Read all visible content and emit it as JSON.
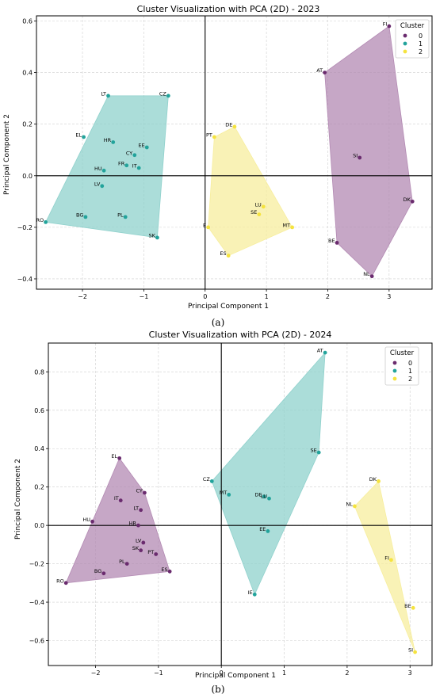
{
  "captions": [
    "(a)",
    "(b)"
  ],
  "chart_data": [
    {
      "type": "scatter",
      "title": "Cluster Visualization with PCA (2D) - 2023",
      "xlabel": "Principal Component 1",
      "ylabel": "Principal Component 2",
      "xlim": [
        -2.75,
        3.7
      ],
      "ylim": [
        -0.44,
        0.62
      ],
      "xticks": [
        -2,
        -1,
        0,
        1,
        2,
        3
      ],
      "yticks": [
        -0.4,
        -0.2,
        0.0,
        0.2,
        0.4,
        0.6
      ],
      "ytick_labels": [
        "−0.4",
        "−0.2",
        "0.0",
        "0.2",
        "0.4",
        "0.6"
      ],
      "xtick_labels": [
        "−2",
        "−1",
        "0",
        "1",
        "2",
        "3"
      ],
      "grid": true,
      "legend": {
        "title": "Cluster",
        "placement": "top-right",
        "entries": [
          "0",
          "1",
          "2"
        ]
      },
      "cluster_colors": {
        "0": "#6a2b6e",
        "1": "#22a39b",
        "2": "#f5e33f"
      },
      "hull_colors": {
        "0": "#b38ab3",
        "1": "#8fd1cc",
        "2": "#f7ee9e"
      },
      "hulls": {
        "0": [
          "FI",
          "DK",
          "NL",
          "BE",
          "AT"
        ],
        "1": [
          "LT",
          "CZ",
          "SK",
          "RO"
        ],
        "2": [
          "PT",
          "DE",
          "MT",
          "ES",
          "E"
        ]
      },
      "points": [
        {
          "label": "FI",
          "cluster": 0,
          "x": 3.0,
          "y": 0.58
        },
        {
          "label": "AT",
          "cluster": 0,
          "x": 1.95,
          "y": 0.4
        },
        {
          "label": "SI",
          "cluster": 0,
          "x": 2.52,
          "y": 0.07
        },
        {
          "label": "DK",
          "cluster": 0,
          "x": 3.38,
          "y": -0.1
        },
        {
          "label": "BE",
          "cluster": 0,
          "x": 2.15,
          "y": -0.26
        },
        {
          "label": "NL",
          "cluster": 0,
          "x": 2.72,
          "y": -0.39
        },
        {
          "label": "LT",
          "cluster": 1,
          "x": -1.58,
          "y": 0.31
        },
        {
          "label": "CZ",
          "cluster": 1,
          "x": -0.6,
          "y": 0.31
        },
        {
          "label": "EL",
          "cluster": 1,
          "x": -1.98,
          "y": 0.15
        },
        {
          "label": "HR",
          "cluster": 1,
          "x": -1.5,
          "y": 0.13
        },
        {
          "label": "EE",
          "cluster": 1,
          "x": -0.95,
          "y": 0.11
        },
        {
          "label": "CY",
          "cluster": 1,
          "x": -1.15,
          "y": 0.08
        },
        {
          "label": "FR",
          "cluster": 1,
          "x": -1.28,
          "y": 0.04
        },
        {
          "label": "IT",
          "cluster": 1,
          "x": -1.08,
          "y": 0.03
        },
        {
          "label": "HU",
          "cluster": 1,
          "x": -1.65,
          "y": 0.02
        },
        {
          "label": "LV",
          "cluster": 1,
          "x": -1.68,
          "y": -0.04
        },
        {
          "label": "RO",
          "cluster": 1,
          "x": -2.6,
          "y": -0.18
        },
        {
          "label": "BG",
          "cluster": 1,
          "x": -1.95,
          "y": -0.16
        },
        {
          "label": "PL",
          "cluster": 1,
          "x": -1.3,
          "y": -0.16
        },
        {
          "label": "SK",
          "cluster": 1,
          "x": -0.78,
          "y": -0.24
        },
        {
          "label": "DE",
          "cluster": 2,
          "x": 0.48,
          "y": 0.19
        },
        {
          "label": "PT",
          "cluster": 2,
          "x": 0.15,
          "y": 0.15
        },
        {
          "label": "LU",
          "cluster": 2,
          "x": 0.95,
          "y": -0.12
        },
        {
          "label": "SE",
          "cluster": 2,
          "x": 0.88,
          "y": -0.15
        },
        {
          "label": "MT",
          "cluster": 2,
          "x": 1.42,
          "y": -0.2
        },
        {
          "label": "E",
          "cluster": 2,
          "x": 0.05,
          "y": -0.2
        },
        {
          "label": "ES",
          "cluster": 2,
          "x": 0.38,
          "y": -0.31
        }
      ]
    },
    {
      "type": "scatter",
      "title": "Cluster Visualization with PCA (2D) - 2024",
      "xlabel": "Principal Component 1",
      "ylabel": "Principal Component 2",
      "xlim": [
        -2.75,
        3.35
      ],
      "ylim": [
        -0.73,
        0.95
      ],
      "xticks": [
        -2,
        -1,
        0,
        1,
        2,
        3
      ],
      "yticks": [
        -0.6,
        -0.4,
        -0.2,
        0.0,
        0.2,
        0.4,
        0.6,
        0.8
      ],
      "ytick_labels": [
        "−0.6",
        "−0.4",
        "−0.2",
        "0.0",
        "0.2",
        "0.4",
        "0.6",
        "0.8"
      ],
      "xtick_labels": [
        "−2",
        "−1",
        "0",
        "1",
        "2",
        "3"
      ],
      "grid": true,
      "legend": {
        "title": "Cluster",
        "placement": "top-right",
        "entries": [
          "0",
          "1",
          "2"
        ]
      },
      "cluster_colors": {
        "0": "#6a2b6e",
        "1": "#22a39b",
        "2": "#f5e33f"
      },
      "hull_colors": {
        "0": "#b38ab3",
        "1": "#8fd1cc",
        "2": "#f7ee9e"
      },
      "hulls": {
        "0": [
          "EL",
          "CY",
          "ES",
          "RO"
        ],
        "1": [
          "AT",
          "SE",
          "IE",
          "CZ"
        ],
        "2": [
          "DK",
          "SI",
          "NL"
        ]
      },
      "points": [
        {
          "label": "EL",
          "cluster": 0,
          "x": -1.62,
          "y": 0.35
        },
        {
          "label": "CY",
          "cluster": 0,
          "x": -1.22,
          "y": 0.17
        },
        {
          "label": "IT",
          "cluster": 0,
          "x": -1.6,
          "y": 0.13
        },
        {
          "label": "LT",
          "cluster": 0,
          "x": -1.28,
          "y": 0.08
        },
        {
          "label": "HU",
          "cluster": 0,
          "x": -2.05,
          "y": 0.02
        },
        {
          "label": "HR",
          "cluster": 0,
          "x": -1.32,
          "y": 0.0
        },
        {
          "label": "LV",
          "cluster": 0,
          "x": -1.24,
          "y": -0.09
        },
        {
          "label": "SK",
          "cluster": 0,
          "x": -1.28,
          "y": -0.13
        },
        {
          "label": "PT",
          "cluster": 0,
          "x": -1.04,
          "y": -0.15
        },
        {
          "label": "PL",
          "cluster": 0,
          "x": -1.5,
          "y": -0.2
        },
        {
          "label": "ES",
          "cluster": 0,
          "x": -0.82,
          "y": -0.24
        },
        {
          "label": "BG",
          "cluster": 0,
          "x": -1.87,
          "y": -0.25
        },
        {
          "label": "RO",
          "cluster": 0,
          "x": -2.47,
          "y": -0.3
        },
        {
          "label": "AT",
          "cluster": 1,
          "x": 1.65,
          "y": 0.9
        },
        {
          "label": "SE",
          "cluster": 1,
          "x": 1.55,
          "y": 0.38
        },
        {
          "label": "CZ",
          "cluster": 1,
          "x": -0.15,
          "y": 0.23
        },
        {
          "label": "MT",
          "cluster": 1,
          "x": 0.12,
          "y": 0.16
        },
        {
          "label": "DE",
          "cluster": 1,
          "x": 0.68,
          "y": 0.15
        },
        {
          "label": "LU",
          "cluster": 1,
          "x": 0.76,
          "y": 0.14
        },
        {
          "label": "EE",
          "cluster": 1,
          "x": 0.74,
          "y": -0.03
        },
        {
          "label": "IE",
          "cluster": 1,
          "x": 0.53,
          "y": -0.36
        },
        {
          "label": "DK",
          "cluster": 2,
          "x": 2.5,
          "y": 0.23
        },
        {
          "label": "NL",
          "cluster": 2,
          "x": 2.12,
          "y": 0.1
        },
        {
          "label": "FI",
          "cluster": 2,
          "x": 2.7,
          "y": -0.18
        },
        {
          "label": "BE",
          "cluster": 2,
          "x": 3.05,
          "y": -0.43
        },
        {
          "label": "SI",
          "cluster": 2,
          "x": 3.08,
          "y": -0.66
        }
      ]
    }
  ]
}
